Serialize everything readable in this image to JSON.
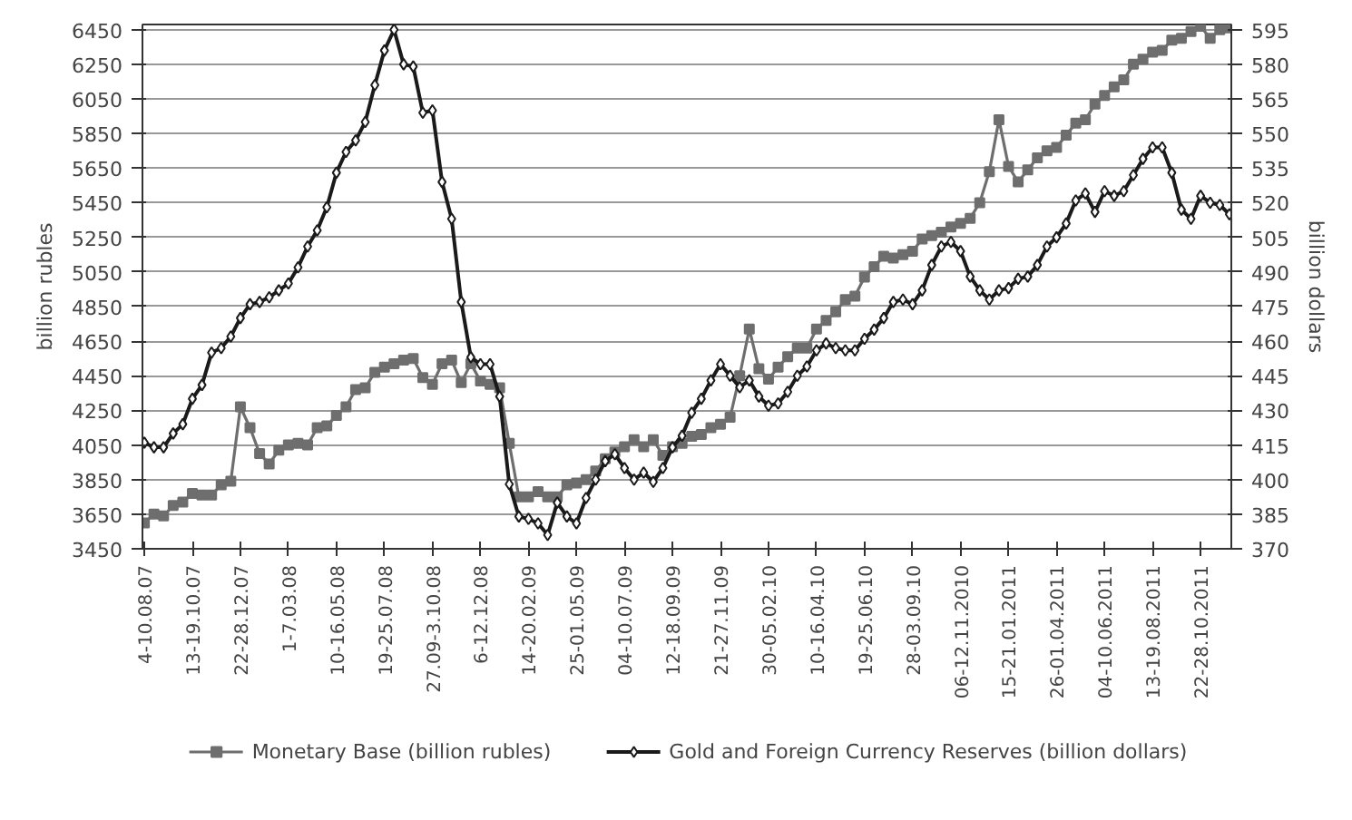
{
  "chart_data": {
    "type": "line",
    "categories": [
      "4-10.08.07",
      null,
      null,
      null,
      null,
      "13-19.10.07",
      null,
      null,
      null,
      null,
      "22-28.12.07",
      null,
      null,
      null,
      null,
      "1-7.03.08",
      null,
      null,
      null,
      null,
      "10-16.05.08",
      null,
      null,
      null,
      null,
      "19-25.07.08",
      null,
      null,
      null,
      null,
      "27.09-3.10.08",
      null,
      null,
      null,
      null,
      "6-12.12.08",
      null,
      null,
      null,
      null,
      "14-20.02.09",
      null,
      null,
      null,
      null,
      "25-01.05.09",
      null,
      null,
      null,
      null,
      "04-10.07.09",
      null,
      null,
      null,
      null,
      "12-18.09.09",
      null,
      null,
      null,
      null,
      "21-27.11.09",
      null,
      null,
      null,
      null,
      "30-05.02.10",
      null,
      null,
      null,
      null,
      "10-16.04.10",
      null,
      null,
      null,
      null,
      "19-25.06.10",
      null,
      null,
      null,
      null,
      "28-03.09.10",
      null,
      null,
      null,
      null,
      "06-12.11.2010",
      null,
      null,
      null,
      null,
      "15-21.01.2011",
      null,
      null,
      null,
      null,
      "26-01.04.2011",
      null,
      null,
      null,
      null,
      "04-10.06.2011",
      null,
      null,
      null,
      null,
      "13-19.08.2011",
      null,
      null,
      null,
      null,
      "22-28.10.2011",
      null,
      null,
      null
    ],
    "ylabel": "billion rubles",
    "y2label": "billion dollars",
    "ylim": [
      3450,
      6480
    ],
    "yticks": [
      3450,
      3650,
      3850,
      4050,
      4250,
      4450,
      4650,
      4850,
      5050,
      5250,
      5450,
      5650,
      5850,
      6050,
      6250,
      6450
    ],
    "y2lim": [
      370,
      597.25
    ],
    "y2ticks": [
      370,
      385,
      400,
      415,
      430,
      445,
      460,
      475,
      490,
      505,
      520,
      535,
      550,
      565,
      580,
      595
    ],
    "grid": "y",
    "legend": "bottom",
    "series": [
      {
        "name": "Monetary Base (billion rubles)",
        "color": "#6e6e6e",
        "marker": "square",
        "values": [
          3600,
          3650,
          3640,
          3700,
          3720,
          3770,
          3760,
          3760,
          3820,
          3840,
          4270,
          4150,
          4000,
          3940,
          4020,
          4050,
          4060,
          4050,
          4150,
          4160,
          4220,
          4270,
          4370,
          4380,
          4470,
          4500,
          4520,
          4540,
          4550,
          4440,
          4400,
          4520,
          4540,
          4410,
          4520,
          4420,
          4400,
          4380,
          4060,
          3750,
          3750,
          3780,
          3750,
          3750,
          3820,
          3830,
          3850,
          3900,
          3970,
          4010,
          4040,
          4080,
          4040,
          4080,
          3990,
          4040,
          4060,
          4100,
          4110,
          4150,
          4170,
          4210,
          4450,
          4720,
          4490,
          4430,
          4500,
          4560,
          4610,
          4610,
          4720,
          4770,
          4820,
          4890,
          4910,
          5020,
          5080,
          5140,
          5130,
          5150,
          5170,
          5240,
          5260,
          5280,
          5310,
          5330,
          5360,
          5450,
          5630,
          5930,
          5660,
          5570,
          5640,
          5710,
          5750,
          5770,
          5840,
          5910,
          5930,
          6020,
          6070,
          6120,
          6160,
          6250,
          6280,
          6320,
          6330,
          6390,
          6400,
          6440,
          6470,
          6400,
          6450,
          6460
        ]
      },
      {
        "name": "Gold and Foreign Currency Reserves (billion dollars)",
        "color": "#1a1a1a",
        "marker": "diamond",
        "axis": "y2",
        "values": [
          416,
          414,
          414,
          420,
          424,
          435,
          441,
          455,
          457,
          462,
          470,
          476,
          477,
          479,
          482,
          485,
          492,
          501,
          508,
          518,
          533,
          542,
          547,
          555,
          571,
          586,
          595,
          580,
          579,
          559,
          560,
          529,
          513,
          477,
          453,
          450,
          450,
          436,
          398,
          384,
          383,
          381,
          376,
          390,
          384,
          381,
          392,
          400,
          408,
          411,
          405,
          400,
          403,
          399,
          405,
          414,
          419,
          429,
          435,
          443,
          450,
          445,
          440,
          443,
          436,
          432,
          433,
          438,
          445,
          449,
          456,
          459,
          457,
          456,
          456,
          461,
          465,
          470,
          477,
          478,
          476,
          482,
          493,
          501,
          503,
          499,
          488,
          482,
          478,
          482,
          483,
          487,
          488,
          493,
          501,
          505,
          511,
          521,
          524,
          516,
          525,
          523,
          525,
          532,
          539,
          544,
          544,
          533,
          517,
          513,
          523,
          520,
          519,
          515
        ]
      }
    ]
  }
}
